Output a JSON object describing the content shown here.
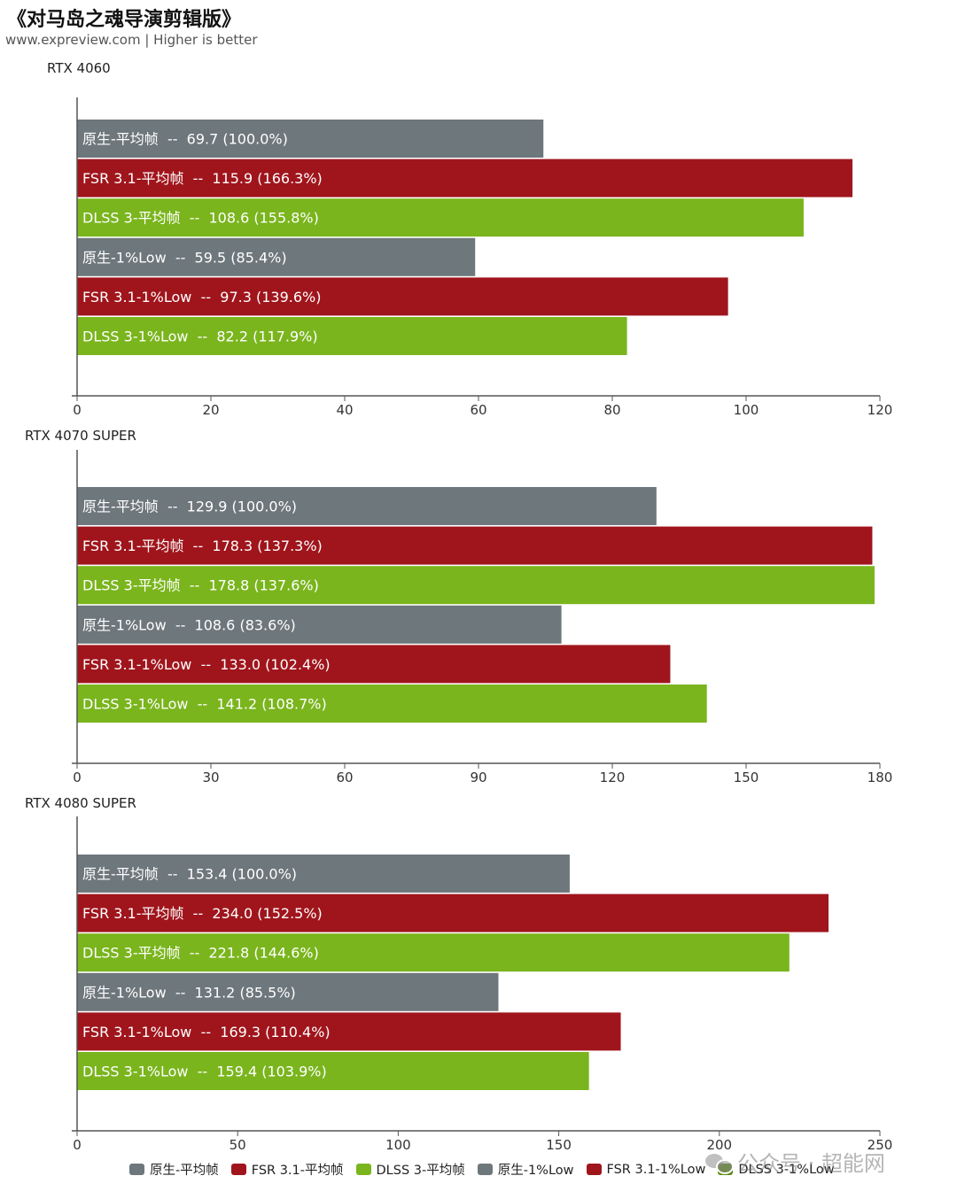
{
  "title": "《对马岛之魂导演剪辑版》",
  "subtitle": "www.expreview.com | Higher is better",
  "colors": {
    "native": "#6e777b",
    "fsr": "#a0151c",
    "dlss": "#7ab51d",
    "axis": "#555555",
    "label": "#ffffff"
  },
  "legend": [
    {
      "label": "原生-平均帧",
      "color": "#6e777b"
    },
    {
      "label": "FSR 3.1-平均帧",
      "color": "#a0151c"
    },
    {
      "label": "DLSS 3-平均帧",
      "color": "#7ab51d"
    },
    {
      "label": "原生-1%Low",
      "color": "#6e777b"
    },
    {
      "label": "FSR 3.1-1%Low",
      "color": "#a0151c"
    },
    {
      "label": "DLSS 3-1%Low",
      "color": "#5a8a14"
    }
  ],
  "watermark": {
    "text": "公众号 · 超能网",
    "icon": "wechat-icon"
  },
  "chart_data": [
    {
      "type": "bar",
      "orientation": "horizontal",
      "title": "RTX 4060",
      "xlim": [
        0,
        120
      ],
      "ticks": [
        0,
        20,
        40,
        60,
        80,
        100,
        120
      ],
      "bars": [
        {
          "series": "原生-平均帧",
          "value": 69.7,
          "label": "原生-平均帧  --  69.7 (100.0%)"
        },
        {
          "series": "FSR 3.1-平均帧",
          "value": 115.9,
          "label": "FSR 3.1-平均帧  --  115.9 (166.3%)"
        },
        {
          "series": "DLSS 3-平均帧",
          "value": 108.6,
          "label": "DLSS 3-平均帧  --  108.6 (155.8%)"
        },
        {
          "series": "原生-1%Low",
          "value": 59.5,
          "label": "原生-1%Low  --  59.5 (85.4%)"
        },
        {
          "series": "FSR 3.1-1%Low",
          "value": 97.3,
          "label": "FSR 3.1-1%Low  --  97.3 (139.6%)"
        },
        {
          "series": "DLSS 3-1%Low",
          "value": 82.2,
          "label": "DLSS 3-1%Low  --  82.2 (117.9%)"
        }
      ]
    },
    {
      "type": "bar",
      "orientation": "horizontal",
      "title": "RTX 4070 SUPER",
      "xlim": [
        0,
        180
      ],
      "ticks": [
        0,
        30,
        60,
        90,
        120,
        150,
        180
      ],
      "bars": [
        {
          "series": "原生-平均帧",
          "value": 129.9,
          "label": "原生-平均帧  --  129.9 (100.0%)"
        },
        {
          "series": "FSR 3.1-平均帧",
          "value": 178.3,
          "label": "FSR 3.1-平均帧  --  178.3 (137.3%)"
        },
        {
          "series": "DLSS 3-平均帧",
          "value": 178.8,
          "label": "DLSS 3-平均帧  --  178.8 (137.6%)"
        },
        {
          "series": "原生-1%Low",
          "value": 108.6,
          "label": "原生-1%Low  --  108.6 (83.6%)"
        },
        {
          "series": "FSR 3.1-1%Low",
          "value": 133.0,
          "label": "FSR 3.1-1%Low  --  133.0 (102.4%)"
        },
        {
          "series": "DLSS 3-1%Low",
          "value": 141.2,
          "label": "DLSS 3-1%Low  --  141.2 (108.7%)"
        }
      ]
    },
    {
      "type": "bar",
      "orientation": "horizontal",
      "title": "RTX 4080 SUPER",
      "xlim": [
        0,
        250
      ],
      "ticks": [
        0,
        50,
        100,
        150,
        200,
        250
      ],
      "bars": [
        {
          "series": "原生-平均帧",
          "value": 153.4,
          "label": "原生-平均帧  --  153.4 (100.0%)"
        },
        {
          "series": "FSR 3.1-平均帧",
          "value": 234.0,
          "label": "FSR 3.1-平均帧  --  234.0 (152.5%)"
        },
        {
          "series": "DLSS 3-平均帧",
          "value": 221.8,
          "label": "DLSS 3-平均帧  --  221.8 (144.6%)"
        },
        {
          "series": "原生-1%Low",
          "value": 131.2,
          "label": "原生-1%Low  --  131.2 (85.5%)"
        },
        {
          "series": "FSR 3.1-1%Low",
          "value": 169.3,
          "label": "FSR 3.1-1%Low  --  169.3 (110.4%)"
        },
        {
          "series": "DLSS 3-1%Low",
          "value": 159.4,
          "label": "DLSS 3-1%Low  --  159.4 (103.9%)"
        }
      ]
    }
  ]
}
